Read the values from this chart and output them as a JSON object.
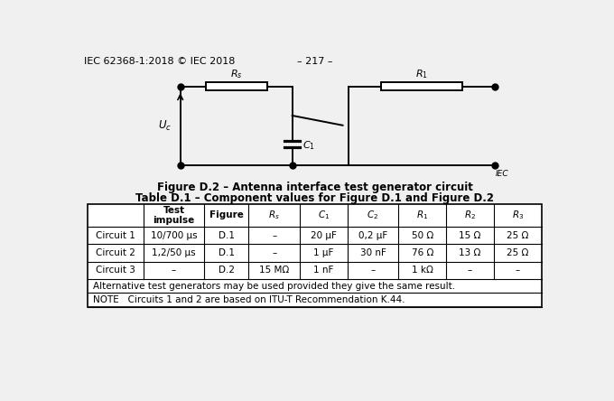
{
  "header_left": "IEC 62368-1:2018 © IEC 2018",
  "header_center": "– 217 –",
  "figure_caption": "Figure D.2 – Antenna interface test generator circuit",
  "table_title": "Table D.1 – Component values for Figure D.1 and Figure D.2",
  "table_rows": [
    [
      "Circuit 1",
      "10/700 µs",
      "D.1",
      "–",
      "20 µF",
      "0,2 µF",
      "50 Ω",
      "15 Ω",
      "25 Ω"
    ],
    [
      "Circuit 2",
      "1,2/50 µs",
      "D.1",
      "–",
      "1 µF",
      "30 nF",
      "76 Ω",
      "13 Ω",
      "25 Ω"
    ],
    [
      "Circuit 3",
      "–",
      "D.2",
      "15 MΩ",
      "1 nF",
      "–",
      "1 kΩ",
      "–",
      "–"
    ]
  ],
  "table_note1": "Alternative test generators may be used provided they give the same result.",
  "table_note2": "NOTE   Circuits 1 and 2 are based on ITU-T Recommendation K.44.",
  "bg_color": "#f0f0f0",
  "iec_label": "IEC"
}
